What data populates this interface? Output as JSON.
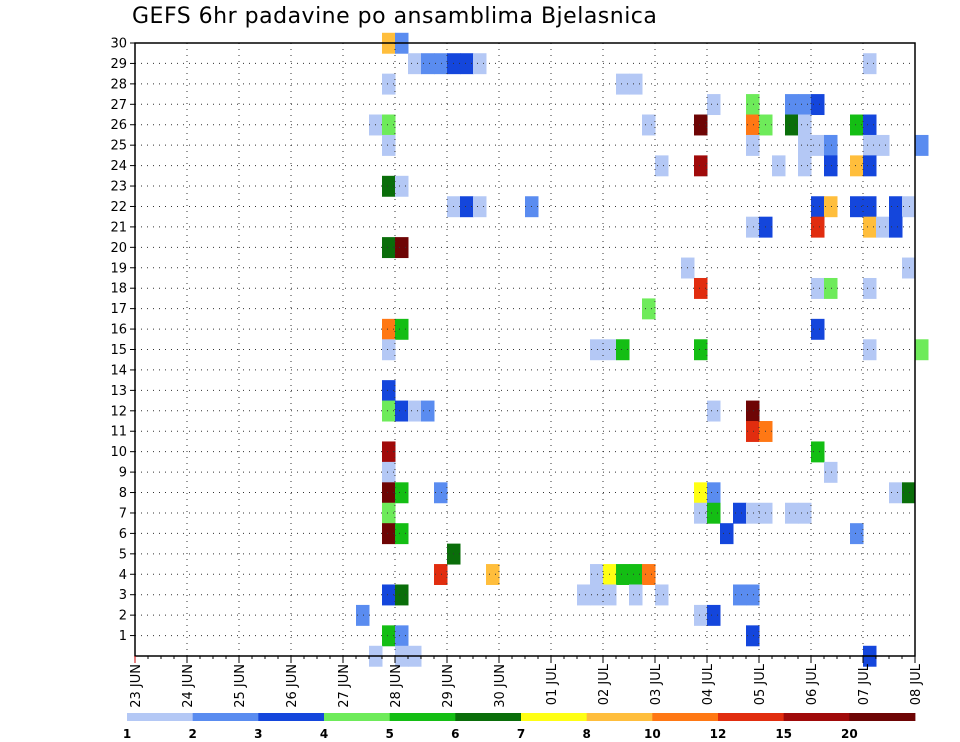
{
  "chart_data": {
    "type": "heatmap",
    "title": "GEFS 6hr padavine po ansamblima Bjelasnica",
    "xlabel": "",
    "ylabel": "",
    "x_ticks": [
      "23 JUN",
      "24 JUN",
      "25 JUN",
      "26 JUN",
      "27 JUN",
      "28 JUN",
      "29 JUN",
      "30 JUN",
      "01 JUL",
      "02 JUL",
      "03 JUL",
      "04 JUL",
      "05 JUL",
      "06 JUL",
      "07 JUL",
      "08 JUL"
    ],
    "y_ticks": [
      1,
      2,
      3,
      4,
      5,
      6,
      7,
      8,
      9,
      10,
      11,
      12,
      13,
      14,
      15,
      16,
      17,
      18,
      19,
      20,
      21,
      22,
      23,
      24,
      25,
      26,
      27,
      28,
      29,
      30
    ],
    "ylim": [
      0,
      30
    ],
    "time_step_hours": 6,
    "grid": true,
    "colorbar": {
      "boundaries": [
        "1",
        "2",
        "3",
        "4",
        "5",
        "6",
        "7",
        "8",
        "10",
        "12",
        "15",
        "20"
      ],
      "colors": [
        "#b4c8f5",
        "#5a8cf0",
        "#1446dc",
        "#6eeb5a",
        "#14be14",
        "#0a6e0a",
        "#ffff14",
        "#ffbe3c",
        "#ff7814",
        "#e12d0f",
        "#a00a0a",
        "#6e0505"
      ]
    },
    "cells_note": "each cell: [member, x in days since 23 JUN 00Z, colour class index 0-11]",
    "cells": [
      [
        30,
        4.75,
        7
      ],
      [
        30,
        5.0,
        1
      ],
      [
        29,
        5.25,
        0
      ],
      [
        29,
        5.5,
        1
      ],
      [
        29,
        5.75,
        1
      ],
      [
        29,
        6.0,
        2
      ],
      [
        29,
        6.25,
        2
      ],
      [
        29,
        6.5,
        0
      ],
      [
        29,
        14.0,
        0
      ],
      [
        28,
        4.75,
        0
      ],
      [
        28,
        9.25,
        0
      ],
      [
        28,
        9.5,
        0
      ],
      [
        27,
        11.0,
        0
      ],
      [
        27,
        11.75,
        3
      ],
      [
        27,
        12.5,
        1
      ],
      [
        27,
        12.75,
        1
      ],
      [
        27,
        13.0,
        2
      ],
      [
        26,
        4.5,
        0
      ],
      [
        26,
        4.75,
        3
      ],
      [
        26,
        9.75,
        0
      ],
      [
        26,
        10.75,
        11
      ],
      [
        26,
        11.75,
        8
      ],
      [
        26,
        12.0,
        3
      ],
      [
        26,
        12.5,
        5
      ],
      [
        26,
        12.75,
        0
      ],
      [
        26,
        13.75,
        4
      ],
      [
        26,
        14.0,
        2
      ],
      [
        25,
        4.75,
        0
      ],
      [
        25,
        11.75,
        0
      ],
      [
        25,
        12.75,
        0
      ],
      [
        25,
        13.0,
        0
      ],
      [
        25,
        13.25,
        1
      ],
      [
        25,
        14.0,
        0
      ],
      [
        25,
        14.25,
        0
      ],
      [
        25,
        15.0,
        1
      ],
      [
        24,
        10.0,
        0
      ],
      [
        24,
        10.75,
        10
      ],
      [
        24,
        12.25,
        0
      ],
      [
        24,
        12.75,
        0
      ],
      [
        24,
        13.25,
        2
      ],
      [
        24,
        13.75,
        7
      ],
      [
        24,
        14.0,
        2
      ],
      [
        23,
        4.75,
        5
      ],
      [
        23,
        5.0,
        0
      ],
      [
        22,
        6.0,
        0
      ],
      [
        22,
        6.25,
        2
      ],
      [
        22,
        6.5,
        0
      ],
      [
        22,
        7.5,
        1
      ],
      [
        22,
        13.0,
        2
      ],
      [
        22,
        13.25,
        7
      ],
      [
        22,
        13.75,
        2
      ],
      [
        22,
        14.0,
        2
      ],
      [
        22,
        14.5,
        2
      ],
      [
        22,
        14.75,
        0
      ],
      [
        21,
        11.75,
        0
      ],
      [
        21,
        12.0,
        2
      ],
      [
        21,
        13.0,
        9
      ],
      [
        21,
        14.0,
        7
      ],
      [
        21,
        14.25,
        0
      ],
      [
        21,
        14.5,
        2
      ],
      [
        20,
        4.75,
        5
      ],
      [
        20,
        5.0,
        11
      ],
      [
        19,
        10.5,
        0
      ],
      [
        19,
        14.75,
        0
      ],
      [
        18,
        10.75,
        9
      ],
      [
        18,
        13.0,
        0
      ],
      [
        18,
        13.25,
        3
      ],
      [
        18,
        14.0,
        0
      ],
      [
        17,
        9.75,
        3
      ],
      [
        16,
        4.75,
        8
      ],
      [
        16,
        5.0,
        4
      ],
      [
        16,
        13.0,
        2
      ],
      [
        15,
        4.75,
        0
      ],
      [
        15,
        8.75,
        0
      ],
      [
        15,
        9.0,
        0
      ],
      [
        15,
        9.25,
        4
      ],
      [
        15,
        10.75,
        4
      ],
      [
        15,
        14.0,
        0
      ],
      [
        15,
        15.0,
        3
      ],
      [
        13,
        4.75,
        2
      ],
      [
        12,
        4.75,
        3
      ],
      [
        12,
        5.0,
        2
      ],
      [
        12,
        5.25,
        0
      ],
      [
        12,
        5.5,
        1
      ],
      [
        12,
        11.0,
        0
      ],
      [
        12,
        11.75,
        11
      ],
      [
        11,
        11.75,
        9
      ],
      [
        11,
        12.0,
        8
      ],
      [
        10,
        4.75,
        10
      ],
      [
        10,
        13.0,
        4
      ],
      [
        9,
        4.75,
        0
      ],
      [
        9,
        13.25,
        0
      ],
      [
        8,
        4.75,
        11
      ],
      [
        8,
        5.0,
        4
      ],
      [
        8,
        5.75,
        1
      ],
      [
        8,
        10.75,
        6
      ],
      [
        8,
        11.0,
        1
      ],
      [
        8,
        14.5,
        0
      ],
      [
        8,
        14.75,
        5
      ],
      [
        7,
        4.75,
        3
      ],
      [
        7,
        10.75,
        0
      ],
      [
        7,
        11.0,
        4
      ],
      [
        7,
        11.5,
        2
      ],
      [
        7,
        11.75,
        0
      ],
      [
        7,
        12.0,
        0
      ],
      [
        7,
        12.5,
        0
      ],
      [
        7,
        12.75,
        0
      ],
      [
        6,
        4.75,
        11
      ],
      [
        6,
        5.0,
        4
      ],
      [
        6,
        11.25,
        2
      ],
      [
        6,
        13.75,
        1
      ],
      [
        4,
        5.75,
        9
      ],
      [
        5,
        6.0,
        5
      ],
      [
        4,
        6.75,
        7
      ],
      [
        4,
        8.75,
        0
      ],
      [
        4,
        9.0,
        6
      ],
      [
        4,
        9.25,
        4
      ],
      [
        4,
        9.5,
        4
      ],
      [
        4,
        9.75,
        8
      ],
      [
        3,
        4.75,
        2
      ],
      [
        3,
        5.0,
        5
      ],
      [
        3,
        8.5,
        0
      ],
      [
        3,
        8.75,
        0
      ],
      [
        3,
        9.0,
        0
      ],
      [
        3,
        9.5,
        0
      ],
      [
        3,
        10.0,
        0
      ],
      [
        3,
        11.5,
        1
      ],
      [
        3,
        11.75,
        1
      ],
      [
        2,
        4.25,
        1
      ],
      [
        2,
        10.75,
        0
      ],
      [
        2,
        11.0,
        2
      ],
      [
        1,
        4.75,
        4
      ],
      [
        1,
        5.0,
        1
      ],
      [
        1,
        11.75,
        2
      ],
      [
        0,
        4.5,
        0
      ],
      [
        0,
        5.0,
        0
      ],
      [
        0,
        5.25,
        0
      ],
      [
        0,
        14.0,
        2
      ]
    ]
  }
}
